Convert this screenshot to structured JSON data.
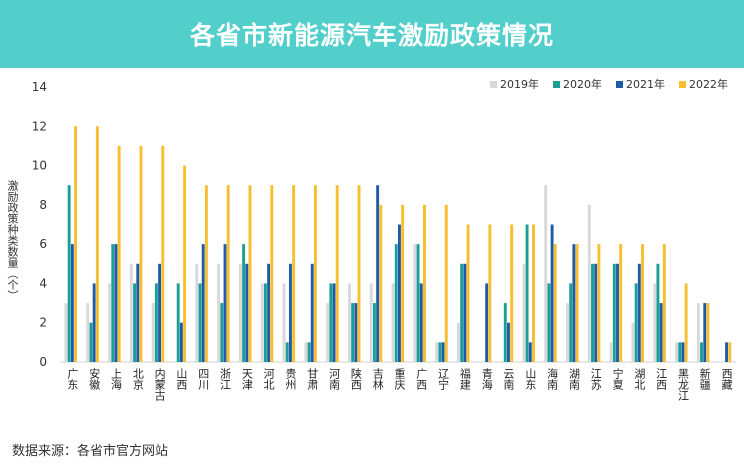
{
  "title": "各省市新能源汽车激励政策情况",
  "source": "数据来源：各省市官方网站",
  "chart_data": {
    "type": "bar",
    "title": "各省市新能源汽车激励政策情况",
    "xlabel": "",
    "ylabel": "激励政策种类数量（个）",
    "ylim": [
      0,
      14
    ],
    "yticks": [
      "0",
      "2",
      "4",
      "6",
      "8",
      "10",
      "12",
      "14"
    ],
    "legend_position": "top-right",
    "categories": [
      "广东",
      "安徽",
      "上海",
      "北京",
      "内蒙古",
      "山西",
      "四川",
      "浙江",
      "天津",
      "河北",
      "贵州",
      "甘肃",
      "河南",
      "陕西",
      "吉林",
      "重庆",
      "广西",
      "辽宁",
      "福建",
      "青海",
      "云南",
      "山东",
      "海南",
      "湖南",
      "江苏",
      "宁夏",
      "湖北",
      "江西",
      "黑龙江",
      "新疆",
      "西藏"
    ],
    "series": [
      {
        "name": "2019年",
        "color": "#d9d9d9",
        "values": [
          3,
          3,
          4,
          5,
          3,
          0,
          5,
          5,
          5,
          4,
          4,
          1,
          3,
          4,
          4,
          4,
          6,
          1,
          2,
          0,
          0,
          5,
          9,
          3,
          8,
          1,
          2,
          4,
          1,
          3,
          0
        ]
      },
      {
        "name": "2020年",
        "color": "#1a9e96",
        "values": [
          9,
          2,
          6,
          4,
          4,
          4,
          4,
          3,
          6,
          4,
          1,
          1,
          4,
          3,
          3,
          6,
          6,
          1,
          5,
          0,
          3,
          7,
          4,
          4,
          5,
          5,
          4,
          5,
          1,
          1,
          0
        ]
      },
      {
        "name": "2021年",
        "color": "#1f5aa6",
        "values": [
          6,
          4,
          6,
          5,
          5,
          2,
          6,
          6,
          5,
          5,
          5,
          5,
          4,
          3,
          9,
          7,
          4,
          1,
          5,
          4,
          2,
          1,
          7,
          6,
          5,
          5,
          5,
          3,
          1,
          3,
          1
        ]
      },
      {
        "name": "2022年",
        "color": "#f7be2e",
        "values": [
          12,
          12,
          11,
          11,
          11,
          10,
          9,
          9,
          9,
          9,
          9,
          9,
          9,
          9,
          8,
          8,
          8,
          8,
          7,
          7,
          7,
          7,
          6,
          6,
          6,
          6,
          6,
          6,
          4,
          3,
          1
        ]
      }
    ]
  }
}
